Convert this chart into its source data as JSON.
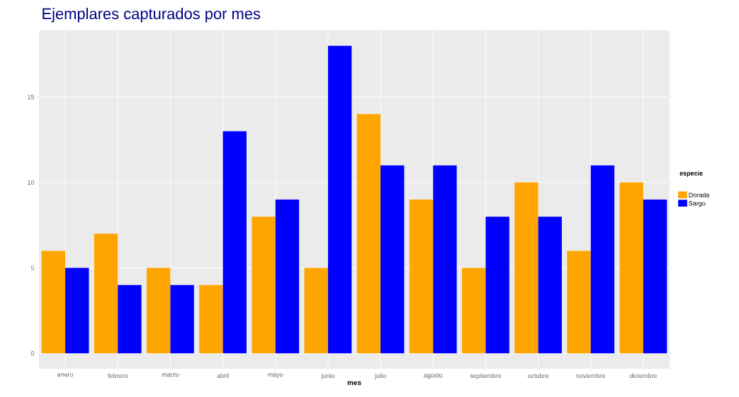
{
  "chart_data": {
    "type": "bar",
    "title": "Ejemplares capturados por mes",
    "xlabel": "mes",
    "legend_title": "especie",
    "categories": [
      "enero",
      "febrero",
      "marzo",
      "abril",
      "mayo",
      "junio",
      "julio",
      "agosto",
      "septiembre",
      "octubre",
      "noviembre",
      "diciembre"
    ],
    "series": [
      {
        "name": "Dorada",
        "color": "#ffa500",
        "values": [
          6,
          7,
          5,
          4,
          8,
          5,
          14,
          9,
          5,
          10,
          6,
          10
        ]
      },
      {
        "name": "Sargo",
        "color": "#0000ff",
        "values": [
          5,
          4,
          4,
          13,
          9,
          18,
          11,
          11,
          8,
          8,
          11,
          9
        ]
      }
    ],
    "ylim": [
      -0.9,
      18.9
    ],
    "yticks": [
      0,
      5,
      10,
      15
    ],
    "grid": true,
    "legend": "right"
  }
}
